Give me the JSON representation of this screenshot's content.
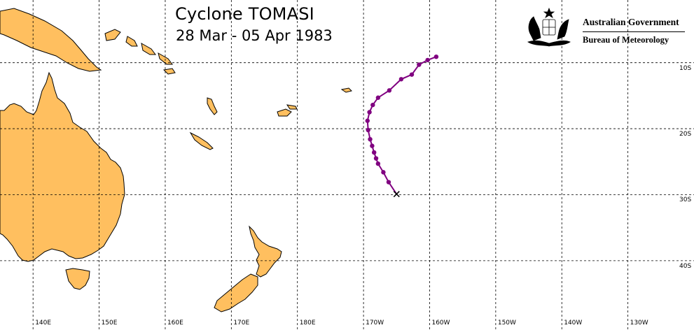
{
  "map": {
    "title": "Cyclone TOMASI",
    "subtitle": "28 Mar - 05 Apr 1983",
    "branding": {
      "government": "Australian Government",
      "bureau": "Bureau of Meteorology"
    },
    "longitude_labels": [
      "140E",
      "150E",
      "160E",
      "170E",
      "180E",
      "170W",
      "160W",
      "150W",
      "140W",
      "130W"
    ],
    "latitude_labels": [
      "10S",
      "20S",
      "30S",
      "40S"
    ],
    "extent": {
      "lon_min": 135,
      "lon_max": 240,
      "lat_north": -0.5,
      "lat_south": -50.5
    },
    "colors": {
      "land": "#FFBF5F",
      "coastline": "#000000",
      "track": "#800080",
      "grid": "#000000",
      "ocean": "#FFFFFF"
    },
    "track": {
      "points": [
        {
          "lon": 201.0,
          "lat": -9.1
        },
        {
          "lon": 199.7,
          "lat": -9.6
        },
        {
          "lon": 198.4,
          "lat": -10.3
        },
        {
          "lon": 197.3,
          "lat": -11.8
        },
        {
          "lon": 195.7,
          "lat": -12.5
        },
        {
          "lon": 193.9,
          "lat": -14.2
        },
        {
          "lon": 192.2,
          "lat": -15.3
        },
        {
          "lon": 191.4,
          "lat": -16.4
        },
        {
          "lon": 190.9,
          "lat": -17.5
        },
        {
          "lon": 190.6,
          "lat": -18.8
        },
        {
          "lon": 190.7,
          "lat": -20.2
        },
        {
          "lon": 191.0,
          "lat": -21.6
        },
        {
          "lon": 191.3,
          "lat": -22.6
        },
        {
          "lon": 191.6,
          "lat": -23.6
        },
        {
          "lon": 191.9,
          "lat": -24.5
        },
        {
          "lon": 192.2,
          "lat": -25.3
        },
        {
          "lon": 193.0,
          "lat": -26.6
        },
        {
          "lon": 193.8,
          "lat": -28.1
        },
        {
          "lon": 195.0,
          "lat": -29.9
        }
      ],
      "end_marker": "x-mark"
    }
  }
}
